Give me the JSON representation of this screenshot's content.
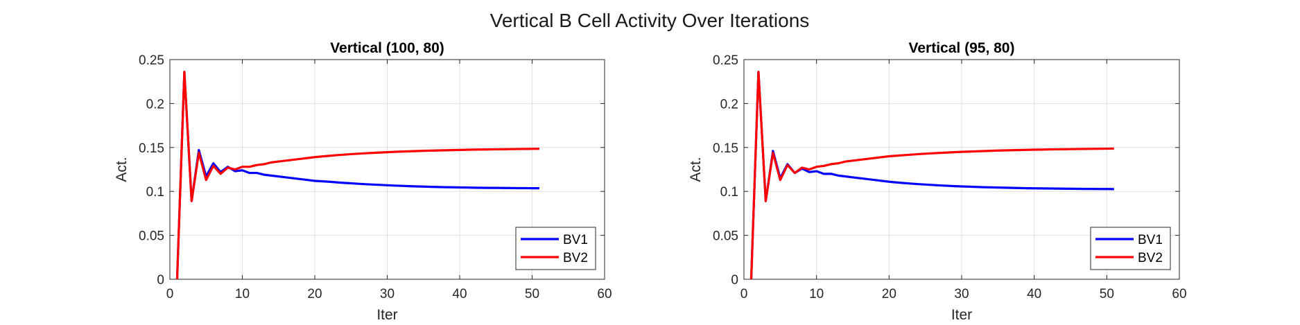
{
  "figure": {
    "title": "Vertical B Cell Activity Over Iterations"
  },
  "colors": {
    "BV1": "#0000ff",
    "BV2": "#ff0000"
  },
  "chart_data": [
    {
      "type": "line",
      "title": "Vertical (100, 80)",
      "xlabel": "Iter",
      "ylabel": "Act.",
      "xlim": [
        0,
        60
      ],
      "ylim": [
        0,
        0.25
      ],
      "xticks": [
        "0",
        "10",
        "20",
        "30",
        "40",
        "50",
        "60"
      ],
      "yticks": [
        "0",
        "0.05",
        "0.1",
        "0.15",
        "0.2",
        "0.25"
      ],
      "grid": true,
      "legend_position": "bottom-right",
      "x": [
        1,
        2,
        3,
        4,
        5,
        6,
        7,
        8,
        9,
        10,
        11,
        12,
        13,
        14,
        15,
        16,
        17,
        18,
        19,
        20,
        21,
        22,
        23,
        24,
        25,
        26,
        27,
        28,
        29,
        30,
        31,
        32,
        33,
        34,
        35,
        36,
        37,
        38,
        39,
        40,
        41,
        42,
        43,
        44,
        45,
        46,
        47,
        48,
        49,
        50,
        51
      ],
      "series": [
        {
          "name": "BV1",
          "color": "#0000ff",
          "values": [
            0,
            0.236,
            0.089,
            0.147,
            0.117,
            0.132,
            0.122,
            0.128,
            0.123,
            0.124,
            0.121,
            0.121,
            0.119,
            0.118,
            0.117,
            0.116,
            0.115,
            0.114,
            0.113,
            0.112,
            0.1115,
            0.111,
            0.1103,
            0.1097,
            0.1092,
            0.1087,
            0.1082,
            0.1078,
            0.1074,
            0.107,
            0.1066,
            0.1063,
            0.106,
            0.1057,
            0.1055,
            0.1052,
            0.105,
            0.1048,
            0.1047,
            0.1045,
            0.1044,
            0.1042,
            0.1041,
            0.104,
            0.104,
            0.1039,
            0.1038,
            0.1037,
            0.1037,
            0.1036,
            0.1036
          ]
        },
        {
          "name": "BV2",
          "color": "#ff0000",
          "values": [
            0,
            0.236,
            0.089,
            0.144,
            0.113,
            0.129,
            0.12,
            0.127,
            0.125,
            0.128,
            0.128,
            0.13,
            0.131,
            0.133,
            0.134,
            0.135,
            0.136,
            0.137,
            0.138,
            0.139,
            0.1398,
            0.1405,
            0.1412,
            0.1418,
            0.1424,
            0.1429,
            0.1434,
            0.1438,
            0.1442,
            0.1446,
            0.145,
            0.1453,
            0.1456,
            0.1459,
            0.1462,
            0.1464,
            0.1466,
            0.1468,
            0.147,
            0.1472,
            0.1474,
            0.1476,
            0.1477,
            0.1478,
            0.1479,
            0.148,
            0.1481,
            0.1482,
            0.1483,
            0.1484,
            0.1485
          ]
        }
      ]
    },
    {
      "type": "line",
      "title": "Vertical (95, 80)",
      "xlabel": "Iter",
      "ylabel": "Act.",
      "xlim": [
        0,
        60
      ],
      "ylim": [
        0,
        0.25
      ],
      "xticks": [
        "0",
        "10",
        "20",
        "30",
        "40",
        "50",
        "60"
      ],
      "yticks": [
        "0",
        "0.05",
        "0.1",
        "0.15",
        "0.2",
        "0.25"
      ],
      "grid": true,
      "legend_position": "bottom-right",
      "x": [
        1,
        2,
        3,
        4,
        5,
        6,
        7,
        8,
        9,
        10,
        11,
        12,
        13,
        14,
        15,
        16,
        17,
        18,
        19,
        20,
        21,
        22,
        23,
        24,
        25,
        26,
        27,
        28,
        29,
        30,
        31,
        32,
        33,
        34,
        35,
        36,
        37,
        38,
        39,
        40,
        41,
        42,
        43,
        44,
        45,
        46,
        47,
        48,
        49,
        50,
        51
      ],
      "series": [
        {
          "name": "BV1",
          "color": "#0000ff",
          "values": [
            0,
            0.236,
            0.089,
            0.146,
            0.115,
            0.131,
            0.121,
            0.126,
            0.122,
            0.123,
            0.12,
            0.12,
            0.118,
            0.117,
            0.116,
            0.115,
            0.114,
            0.113,
            0.112,
            0.111,
            0.1102,
            0.1095,
            0.1089,
            0.1083,
            0.1078,
            0.1073,
            0.1068,
            0.1064,
            0.106,
            0.1057,
            0.1054,
            0.1051,
            0.1048,
            0.1046,
            0.1044,
            0.1042,
            0.104,
            0.1038,
            0.1036,
            0.1035,
            0.1034,
            0.1033,
            0.1032,
            0.1031,
            0.103,
            0.1029,
            0.1028,
            0.1028,
            0.1027,
            0.1027,
            0.1026
          ]
        },
        {
          "name": "BV2",
          "color": "#ff0000",
          "values": [
            0,
            0.236,
            0.089,
            0.144,
            0.113,
            0.13,
            0.121,
            0.127,
            0.125,
            0.128,
            0.129,
            0.131,
            0.132,
            0.134,
            0.135,
            0.136,
            0.137,
            0.138,
            0.139,
            0.14,
            0.1406,
            0.1412,
            0.1418,
            0.1424,
            0.1429,
            0.1434,
            0.1438,
            0.1442,
            0.1446,
            0.145,
            0.1453,
            0.1456,
            0.1459,
            0.1462,
            0.1465,
            0.1467,
            0.1469,
            0.1471,
            0.1473,
            0.1475,
            0.1476,
            0.1478,
            0.1479,
            0.148,
            0.1481,
            0.1482,
            0.1483,
            0.1484,
            0.1485,
            0.1486,
            0.1487
          ]
        }
      ]
    }
  ]
}
